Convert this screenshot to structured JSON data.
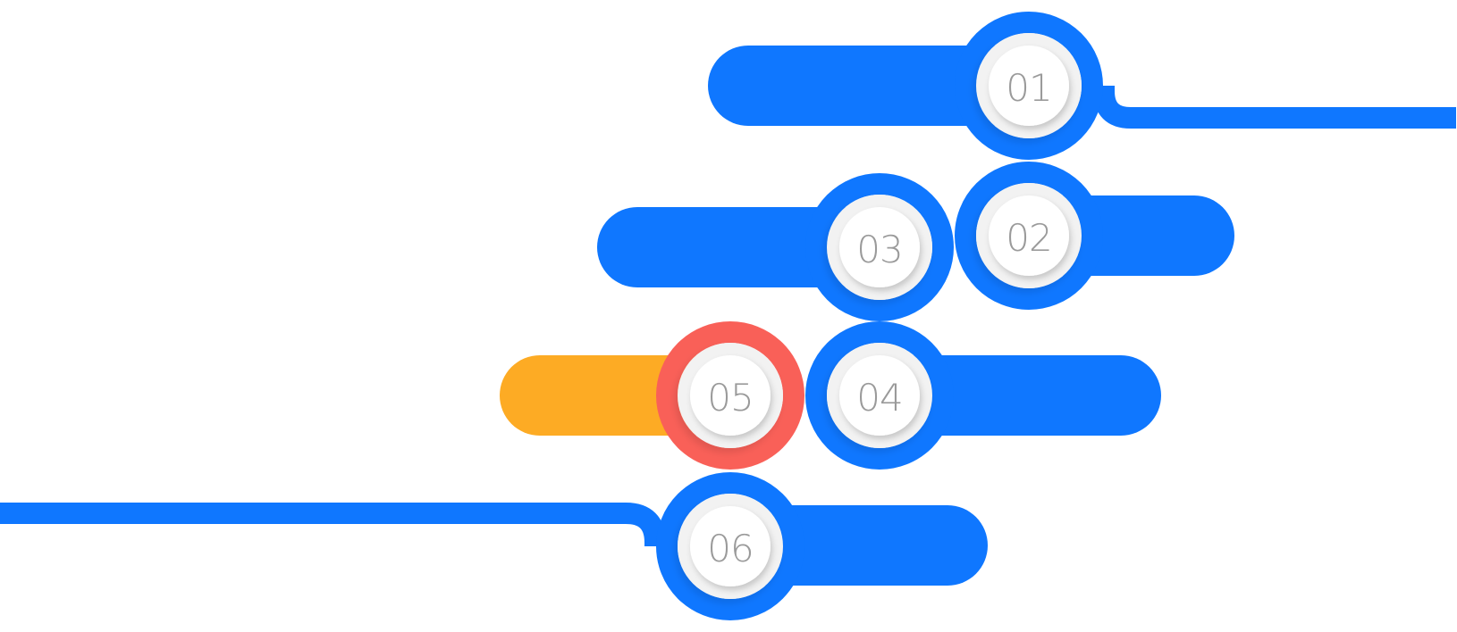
{
  "colors": {
    "primary": "#0F77FF",
    "accent_orange": "#FDAB24",
    "accent_red": "#F96058",
    "node_ring": "#F2F2F2",
    "node_face": "#FFFFFF",
    "number_text": "#9A9A9A"
  },
  "steps": [
    {
      "number": "01",
      "bar_color": "#0F77FF",
      "ring_color": "#0F77FF"
    },
    {
      "number": "02",
      "bar_color": "#0F77FF",
      "ring_color": "#0F77FF"
    },
    {
      "number": "03",
      "bar_color": "#0F77FF",
      "ring_color": "#0F77FF"
    },
    {
      "number": "04",
      "bar_color": "#0F77FF",
      "ring_color": "#0F77FF"
    },
    {
      "number": "05",
      "bar_color": "#FDAB24",
      "ring_color": "#F96058"
    },
    {
      "number": "06",
      "bar_color": "#0F77FF",
      "ring_color": "#0F77FF"
    }
  ]
}
